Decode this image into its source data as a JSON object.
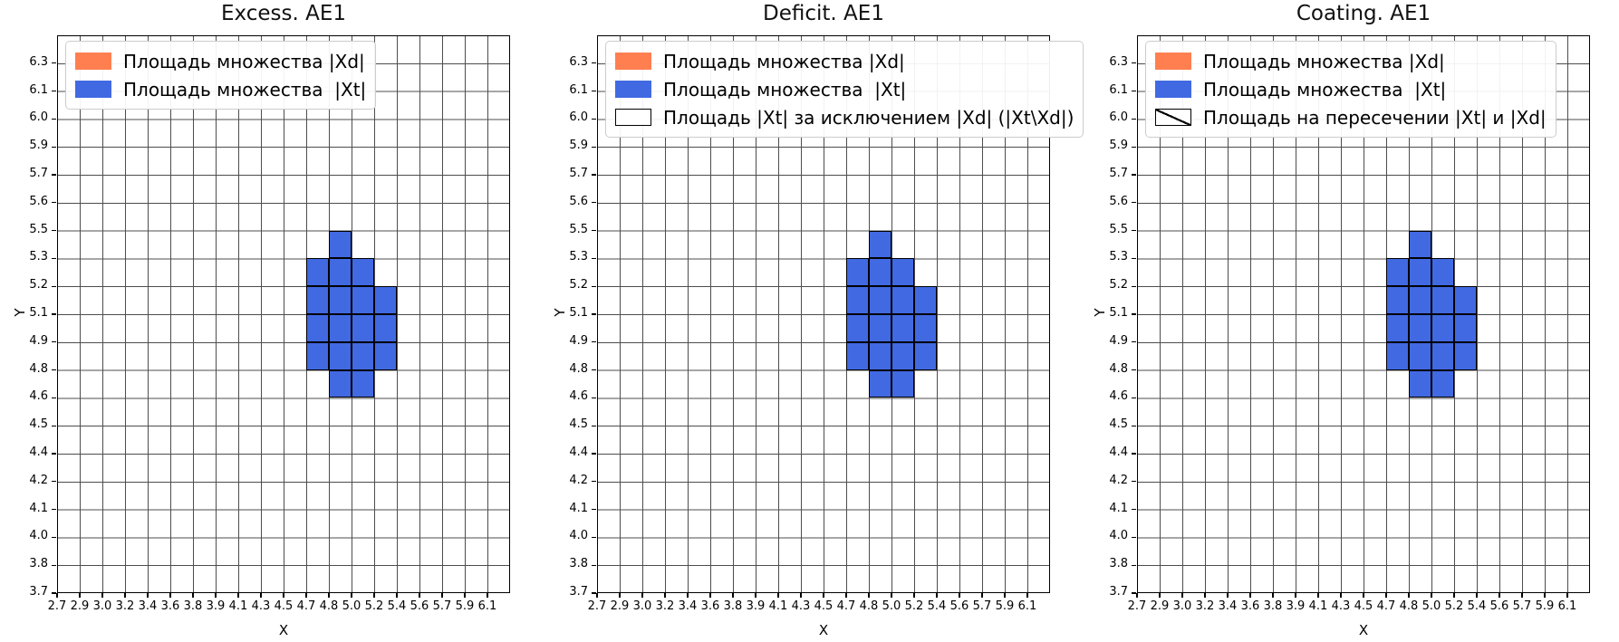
{
  "chart_data": {
    "type": "heatmap",
    "grid": true,
    "legend_position": "upper left",
    "xlabel": "X",
    "ylabel": "Y",
    "x_tick_labels": [
      "2.7",
      "2.9",
      "3.0",
      "3.2",
      "3.4",
      "3.6",
      "3.8",
      "3.9",
      "4.1",
      "4.3",
      "4.5",
      "4.7",
      "4.8",
      "5.0",
      "5.2",
      "5.4",
      "5.6",
      "5.7",
      "5.9",
      "6.1"
    ],
    "y_tick_labels": [
      "6.3",
      "6.1",
      "6.0",
      "5.9",
      "5.7",
      "5.6",
      "5.5",
      "5.3",
      "5.2",
      "5.1",
      "4.9",
      "4.8",
      "4.6",
      "4.5",
      "4.4",
      "4.2",
      "4.1",
      "4.0",
      "3.8",
      "3.7"
    ],
    "x_range_approx": [
      2.7,
      6.28
    ],
    "y_range_approx": [
      3.7,
      6.43
    ],
    "colors": {
      "xd": "#FF7F50",
      "xt": "#4169E1",
      "grid_line": "#4d4d4d",
      "cell_edge": "#000000"
    },
    "xt_cells_value_space": [
      {
        "x": [
          4.8,
          5.0
        ],
        "y": [
          5.3,
          5.5
        ]
      },
      {
        "x": [
          4.7,
          4.8
        ],
        "y": [
          5.2,
          5.3
        ]
      },
      {
        "x": [
          4.8,
          5.0
        ],
        "y": [
          5.2,
          5.3
        ]
      },
      {
        "x": [
          5.0,
          5.2
        ],
        "y": [
          5.2,
          5.3
        ]
      },
      {
        "x": [
          4.7,
          4.8
        ],
        "y": [
          5.1,
          5.2
        ]
      },
      {
        "x": [
          4.8,
          5.0
        ],
        "y": [
          5.1,
          5.2
        ]
      },
      {
        "x": [
          5.0,
          5.2
        ],
        "y": [
          5.1,
          5.2
        ]
      },
      {
        "x": [
          5.2,
          5.4
        ],
        "y": [
          5.1,
          5.2
        ]
      },
      {
        "x": [
          4.7,
          4.8
        ],
        "y": [
          4.9,
          5.1
        ]
      },
      {
        "x": [
          4.8,
          5.0
        ],
        "y": [
          4.9,
          5.1
        ]
      },
      {
        "x": [
          5.0,
          5.2
        ],
        "y": [
          4.9,
          5.1
        ]
      },
      {
        "x": [
          5.2,
          5.4
        ],
        "y": [
          4.9,
          5.1
        ]
      },
      {
        "x": [
          4.7,
          4.8
        ],
        "y": [
          4.8,
          4.9
        ]
      },
      {
        "x": [
          4.8,
          5.0
        ],
        "y": [
          4.8,
          4.9
        ]
      },
      {
        "x": [
          5.0,
          5.2
        ],
        "y": [
          4.8,
          4.9
        ]
      },
      {
        "x": [
          5.2,
          5.4
        ],
        "y": [
          4.8,
          4.9
        ]
      },
      {
        "x": [
          4.8,
          5.0
        ],
        "y": [
          4.6,
          4.8
        ]
      },
      {
        "x": [
          5.0,
          5.2
        ],
        "y": [
          4.6,
          4.8
        ]
      }
    ],
    "xt_cells_grid_idx": [
      [
        12,
        6
      ],
      [
        11,
        7
      ],
      [
        12,
        7
      ],
      [
        13,
        7
      ],
      [
        11,
        8
      ],
      [
        12,
        8
      ],
      [
        13,
        8
      ],
      [
        14,
        8
      ],
      [
        11,
        9
      ],
      [
        12,
        9
      ],
      [
        13,
        9
      ],
      [
        14,
        9
      ],
      [
        11,
        10
      ],
      [
        12,
        10
      ],
      [
        13,
        10
      ],
      [
        14,
        10
      ],
      [
        12,
        11
      ],
      [
        13,
        11
      ]
    ],
    "intersection_cells_value_space": [
      {
        "x": [
          4.8,
          5.0
        ],
        "y": [
          5.1,
          5.2
        ]
      },
      {
        "x": [
          5.0,
          5.2
        ],
        "y": [
          5.1,
          5.2
        ]
      },
      {
        "x": [
          4.8,
          5.0
        ],
        "y": [
          4.9,
          5.1
        ]
      },
      {
        "x": [
          5.0,
          5.2
        ],
        "y": [
          4.9,
          5.1
        ]
      }
    ],
    "intersection_cells_grid_idx": [
      [
        12,
        8
      ],
      [
        13,
        8
      ],
      [
        12,
        9
      ],
      [
        13,
        9
      ]
    ],
    "subplots": [
      {
        "title": "Excess. AE1",
        "show_hatch": false,
        "legend": [
          {
            "swatch": "xd-solid",
            "label": "Площадь множества |Xd|"
          },
          {
            "swatch": "xt-solid",
            "label": "Площадь множества  |Xt|"
          }
        ]
      },
      {
        "title": "Deficit. AE1",
        "show_hatch": false,
        "legend": [
          {
            "swatch": "xd-solid",
            "label": "Площадь множества |Xd|"
          },
          {
            "swatch": "xt-solid",
            "label": "Площадь множества  |Xt|"
          },
          {
            "swatch": "outline",
            "label": "Площадь |Xt| за исключением |Xd| (|Xt\\Xd|)"
          }
        ]
      },
      {
        "title": "Coating. AE1",
        "show_hatch": true,
        "legend": [
          {
            "swatch": "xd-solid",
            "label": "Площадь множества |Xd|"
          },
          {
            "swatch": "xt-solid",
            "label": "Площадь множества  |Xt|"
          },
          {
            "swatch": "hatch",
            "label": "Площадь на пересечении |Xt| и |Xd|"
          }
        ]
      }
    ]
  }
}
